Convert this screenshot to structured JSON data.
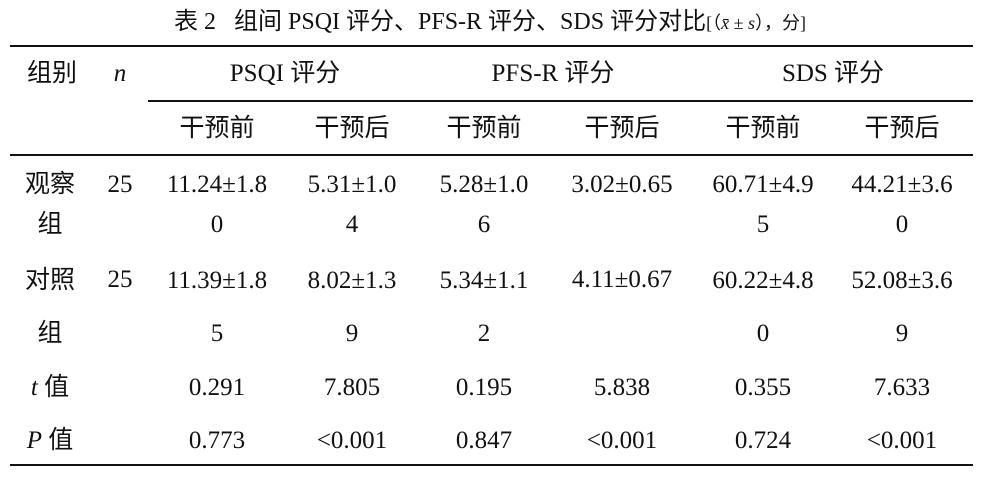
{
  "title": {
    "label": "表 2",
    "text": "组间 PSQI 评分、PFS-R 评分、SDS 评分对比",
    "suffix_open": "[（",
    "mean_symbol": "x̄",
    "pm": " ± ",
    "sd_symbol": "s",
    "suffix_close": "），分]"
  },
  "header": {
    "group": "组别",
    "n": "n",
    "groups": [
      "PSQI 评分",
      "PFS-R 评分",
      "SDS 评分"
    ],
    "sub": [
      "干预前",
      "干预后",
      "干预前",
      "干预后",
      "干预前",
      "干预后"
    ]
  },
  "rows": [
    {
      "label": "观察组",
      "n": "25",
      "values": [
        "11.24±1.80",
        "5.31±1.04",
        "5.28±1.06",
        "3.02±0.65",
        "60.71±4.95",
        "44.21±3.60"
      ]
    },
    {
      "label": "对照组",
      "n": "25",
      "values": [
        "11.39±1.85",
        "8.02±1.39",
        "5.34±1.12",
        "4.11±0.67",
        "60.22±4.80",
        "52.08±3.69"
      ]
    }
  ],
  "stats": [
    {
      "symbol": "t",
      "label": " 值",
      "values": [
        "0.291",
        "7.805",
        "0.195",
        "5.838",
        "0.355",
        "7.633"
      ]
    },
    {
      "symbol": "P",
      "label": " 值",
      "values": [
        "0.773",
        "<0.001",
        "0.847",
        "<0.001",
        "0.724",
        "<0.001"
      ]
    }
  ]
}
